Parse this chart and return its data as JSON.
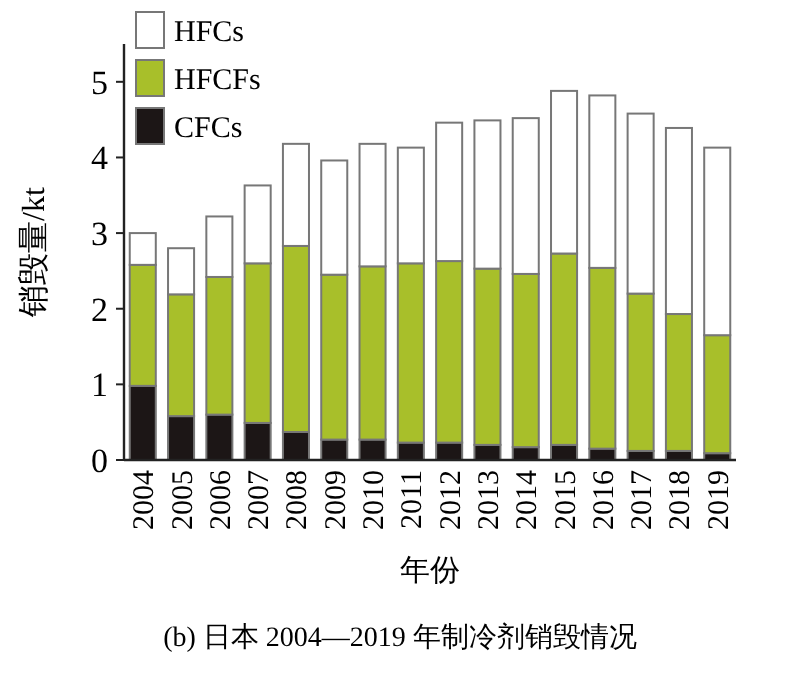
{
  "chart_data": {
    "type": "bar",
    "stacked": true,
    "title": "(b) 日本 2004—2019 年制冷剂销毁情况",
    "xlabel": "年份",
    "ylabel": "销毁量/kt",
    "categories": [
      "2004",
      "2005",
      "2006",
      "2007",
      "2008",
      "2009",
      "2010",
      "2011",
      "2012",
      "2013",
      "2014",
      "2015",
      "2016",
      "2017",
      "2018",
      "2019"
    ],
    "series": [
      {
        "name": "CFCs",
        "color": "#1c1616",
        "values": [
          0.98,
          0.58,
          0.6,
          0.49,
          0.37,
          0.27,
          0.27,
          0.23,
          0.23,
          0.2,
          0.17,
          0.2,
          0.15,
          0.12,
          0.12,
          0.09
        ]
      },
      {
        "name": "HFCFs",
        "color": "#a8bf2a",
        "values": [
          1.6,
          1.61,
          1.82,
          2.11,
          2.46,
          2.18,
          2.29,
          2.37,
          2.4,
          2.33,
          2.29,
          2.53,
          2.39,
          2.08,
          1.81,
          1.56
        ]
      },
      {
        "name": "HFCs",
        "color": "#ffffff",
        "values": [
          0.42,
          0.61,
          0.8,
          1.03,
          1.35,
          1.51,
          1.62,
          1.53,
          1.83,
          1.96,
          2.06,
          2.15,
          2.28,
          2.38,
          2.46,
          2.48
        ]
      }
    ],
    "ylim": [
      0,
      5.5
    ],
    "yticks": [
      0,
      1,
      2,
      3,
      4,
      5
    ],
    "grid": false,
    "legend": "top left"
  }
}
